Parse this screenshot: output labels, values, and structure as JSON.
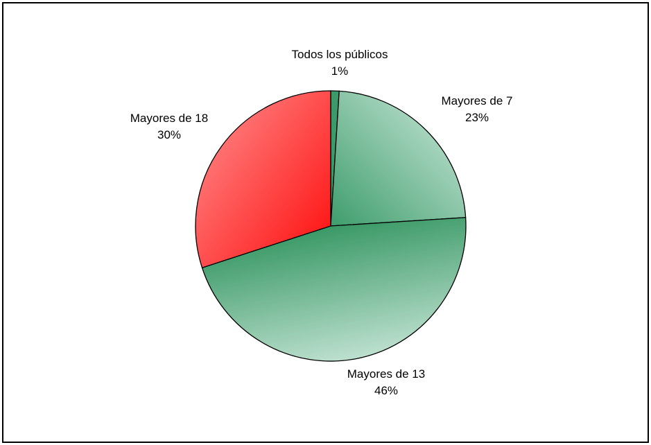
{
  "chart_data": {
    "type": "pie",
    "start_angle_deg": 0,
    "direction": "clockwise",
    "slices": [
      {
        "label": "Todos los públicos",
        "value": 1,
        "value_label": "1%",
        "color_main": "#3b9a6a",
        "color_light": "#3b9a6a"
      },
      {
        "label": "Mayores de 7",
        "value": 23,
        "value_label": "23%",
        "color_main": "#3e9d6c",
        "color_light": "#a6d4bd"
      },
      {
        "label": "Mayores de 13",
        "value": 46,
        "value_label": "46%",
        "color_main": "#3a9966",
        "color_light": "#bde0cf"
      },
      {
        "label": "Mayores de 18",
        "value": 30,
        "value_label": "30%",
        "color_main": "#ff1a1a",
        "color_light": "#ff7070"
      }
    ],
    "border_color": "#000000",
    "background": "#ffffff"
  }
}
